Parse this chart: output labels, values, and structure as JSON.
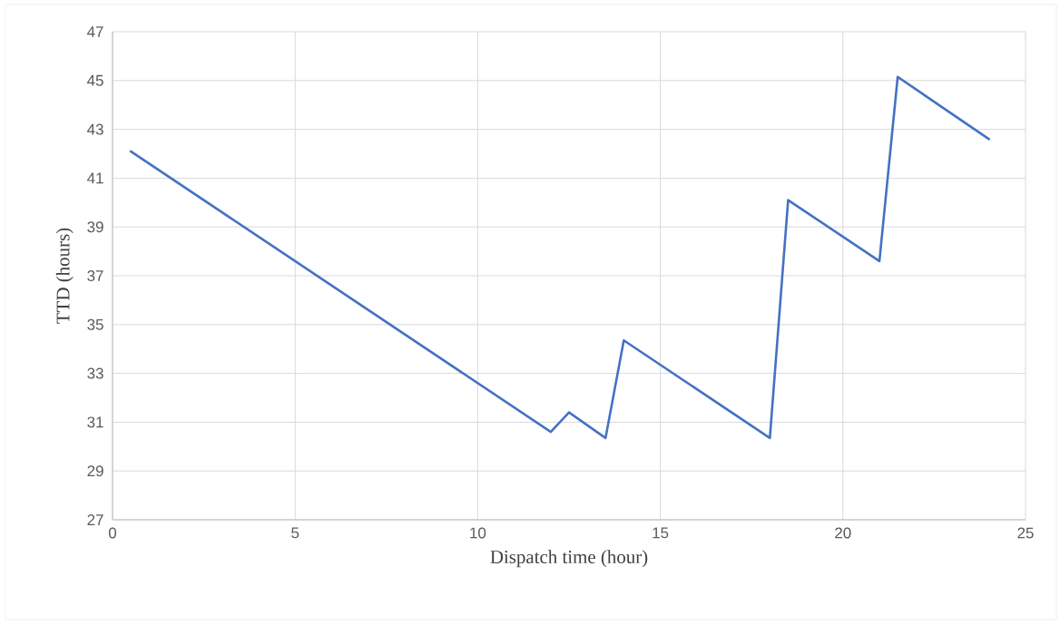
{
  "chart_data": {
    "type": "line",
    "xlabel": "Dispatch time (hour)",
    "ylabel": "TTD (hours)",
    "x": [
      0.5,
      12,
      12.5,
      13.5,
      14,
      18,
      18.5,
      21,
      21.5,
      24
    ],
    "series": [
      {
        "color": "#4472c4",
        "values": [
          42.1,
          30.6,
          31.4,
          30.35,
          34.35,
          30.35,
          40.1,
          37.6,
          45.15,
          42.6
        ]
      }
    ],
    "xlim": [
      0,
      25
    ],
    "xticks": [
      0,
      5,
      10,
      15,
      20,
      25
    ],
    "ylim": [
      27,
      47
    ],
    "yticks": [
      27,
      29,
      31,
      33,
      35,
      37,
      39,
      41,
      43,
      45,
      47
    ],
    "grid": true,
    "marker": "none",
    "line_style": "solid"
  }
}
